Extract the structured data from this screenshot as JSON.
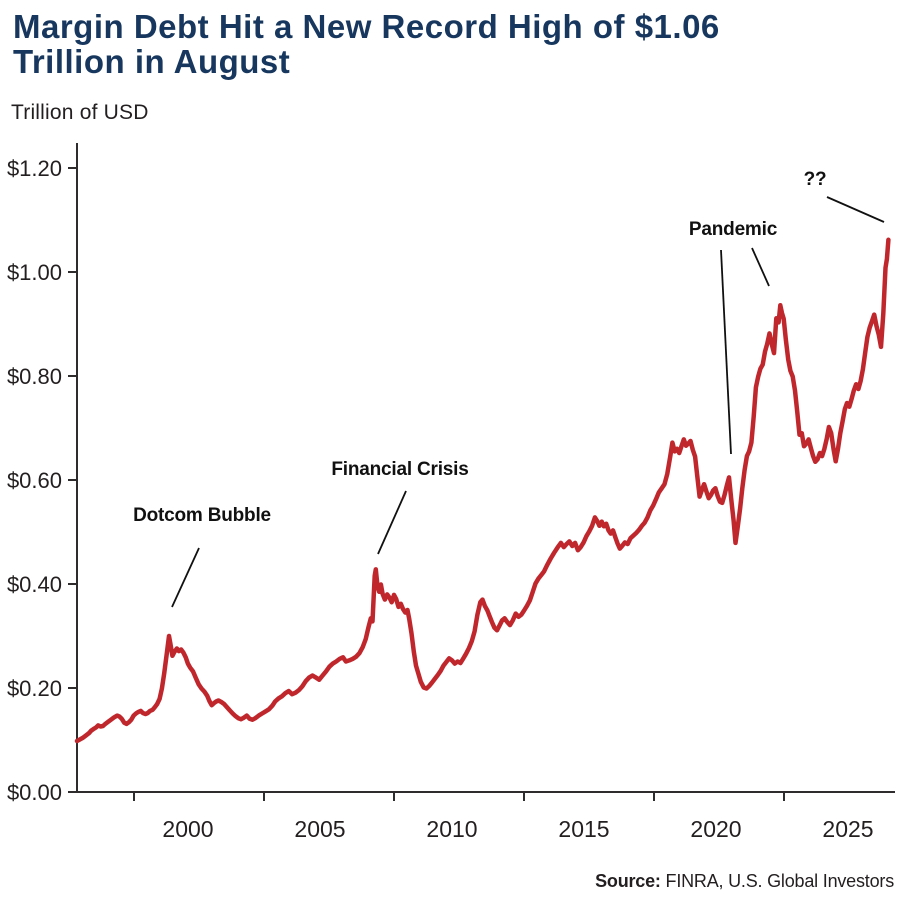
{
  "title": {
    "line1": "Margin Debt Hit a New Record High of $1.06",
    "line2": "Trillion in August"
  },
  "subtitle": "Trillion of USD",
  "source": {
    "label": "Source:",
    "text": " FINRA, U.S. Global Investors"
  },
  "colors": {
    "line": "#c0272d",
    "title": "#17375e",
    "axis": "#2e2c2d",
    "tick_text": "#231f20",
    "annotation": "#111111",
    "background": "#ffffff"
  },
  "chart_data": {
    "type": "line",
    "title": "Margin Debt Hit a New Record High of $1.06 Trillion in August",
    "ylabel": "Trillion of USD",
    "series_name": "FINRA margin debt (trillions of USD)",
    "x_range": [
      1997.0,
      2025.67
    ],
    "ylim": [
      0.0,
      1.2
    ],
    "grid": false,
    "legend": false,
    "y_ticks": {
      "values": [
        1.2,
        1.0,
        0.8,
        0.6,
        0.4,
        0.2,
        0.0
      ],
      "labels": [
        "$1.20",
        "$1.00",
        "$0.80",
        "$0.60",
        "$0.40",
        "$0.20",
        "$0.00"
      ]
    },
    "x_ticks": {
      "values": [
        2000,
        2005,
        2010,
        2015,
        2020,
        2025
      ],
      "labels": [
        "2000",
        "2005",
        "2010",
        "2015",
        "2020",
        "2025"
      ]
    },
    "annotations": [
      {
        "id": "dotcom-bubble",
        "label": "Dotcom Bubble",
        "target_year": 2000.25,
        "target_value": 0.3
      },
      {
        "id": "financial-crisis",
        "label": "Financial Crisis",
        "target_year": 2007.55,
        "target_value": 0.428
      },
      {
        "id": "pandemic",
        "label": "Pandemic",
        "target_year": 2020.27,
        "target_value": 0.479
      },
      {
        "id": "record-high",
        "label": "??",
        "target_year": 2025.67,
        "target_value": 1.06
      }
    ],
    "points": [
      [
        1997.0,
        0.098
      ],
      [
        1997.1,
        0.101
      ],
      [
        1997.2,
        0.104
      ],
      [
        1997.3,
        0.108
      ],
      [
        1997.42,
        0.113
      ],
      [
        1997.5,
        0.118
      ],
      [
        1997.58,
        0.121
      ],
      [
        1997.67,
        0.124
      ],
      [
        1997.75,
        0.128
      ],
      [
        1997.83,
        0.126
      ],
      [
        1997.92,
        0.127
      ],
      [
        1998.0,
        0.131
      ],
      [
        1998.1,
        0.135
      ],
      [
        1998.2,
        0.139
      ],
      [
        1998.3,
        0.143
      ],
      [
        1998.42,
        0.147
      ],
      [
        1998.5,
        0.145
      ],
      [
        1998.58,
        0.141
      ],
      [
        1998.67,
        0.133
      ],
      [
        1998.75,
        0.131
      ],
      [
        1998.83,
        0.134
      ],
      [
        1998.92,
        0.139
      ],
      [
        1999.0,
        0.147
      ],
      [
        1999.08,
        0.151
      ],
      [
        1999.17,
        0.154
      ],
      [
        1999.25,
        0.156
      ],
      [
        1999.33,
        0.152
      ],
      [
        1999.42,
        0.15
      ],
      [
        1999.5,
        0.152
      ],
      [
        1999.58,
        0.156
      ],
      [
        1999.67,
        0.158
      ],
      [
        1999.75,
        0.163
      ],
      [
        1999.83,
        0.169
      ],
      [
        1999.92,
        0.179
      ],
      [
        2000.0,
        0.199
      ],
      [
        2000.08,
        0.228
      ],
      [
        2000.17,
        0.265
      ],
      [
        2000.25,
        0.3
      ],
      [
        2000.3,
        0.285
      ],
      [
        2000.37,
        0.262
      ],
      [
        2000.45,
        0.27
      ],
      [
        2000.53,
        0.276
      ],
      [
        2000.6,
        0.271
      ],
      [
        2000.68,
        0.274
      ],
      [
        2000.76,
        0.268
      ],
      [
        2000.84,
        0.259
      ],
      [
        2000.92,
        0.247
      ],
      [
        2001.0,
        0.239
      ],
      [
        2001.1,
        0.232
      ],
      [
        2001.2,
        0.219
      ],
      [
        2001.3,
        0.207
      ],
      [
        2001.4,
        0.199
      ],
      [
        2001.5,
        0.193
      ],
      [
        2001.6,
        0.185
      ],
      [
        2001.68,
        0.175
      ],
      [
        2001.76,
        0.167
      ],
      [
        2001.84,
        0.171
      ],
      [
        2001.92,
        0.174
      ],
      [
        2002.0,
        0.176
      ],
      [
        2002.1,
        0.173
      ],
      [
        2002.2,
        0.169
      ],
      [
        2002.3,
        0.163
      ],
      [
        2002.4,
        0.157
      ],
      [
        2002.5,
        0.151
      ],
      [
        2002.6,
        0.146
      ],
      [
        2002.7,
        0.142
      ],
      [
        2002.8,
        0.14
      ],
      [
        2002.9,
        0.143
      ],
      [
        2003.0,
        0.147
      ],
      [
        2003.1,
        0.141
      ],
      [
        2003.2,
        0.139
      ],
      [
        2003.3,
        0.142
      ],
      [
        2003.42,
        0.147
      ],
      [
        2003.54,
        0.151
      ],
      [
        2003.66,
        0.155
      ],
      [
        2003.78,
        0.159
      ],
      [
        2003.9,
        0.166
      ],
      [
        2004.0,
        0.174
      ],
      [
        2004.12,
        0.18
      ],
      [
        2004.24,
        0.184
      ],
      [
        2004.36,
        0.19
      ],
      [
        2004.48,
        0.194
      ],
      [
        2004.6,
        0.188
      ],
      [
        2004.72,
        0.191
      ],
      [
        2004.84,
        0.196
      ],
      [
        2004.96,
        0.203
      ],
      [
        2005.08,
        0.213
      ],
      [
        2005.2,
        0.22
      ],
      [
        2005.32,
        0.224
      ],
      [
        2005.44,
        0.22
      ],
      [
        2005.56,
        0.216
      ],
      [
        2005.68,
        0.224
      ],
      [
        2005.8,
        0.232
      ],
      [
        2005.92,
        0.241
      ],
      [
        2006.04,
        0.247
      ],
      [
        2006.16,
        0.251
      ],
      [
        2006.28,
        0.256
      ],
      [
        2006.4,
        0.259
      ],
      [
        2006.5,
        0.251
      ],
      [
        2006.62,
        0.253
      ],
      [
        2006.74,
        0.256
      ],
      [
        2006.86,
        0.26
      ],
      [
        2006.98,
        0.267
      ],
      [
        2007.1,
        0.279
      ],
      [
        2007.2,
        0.294
      ],
      [
        2007.3,
        0.317
      ],
      [
        2007.38,
        0.334
      ],
      [
        2007.44,
        0.328
      ],
      [
        2007.52,
        0.416
      ],
      [
        2007.56,
        0.428
      ],
      [
        2007.62,
        0.396
      ],
      [
        2007.68,
        0.385
      ],
      [
        2007.74,
        0.399
      ],
      [
        2007.8,
        0.381
      ],
      [
        2007.88,
        0.37
      ],
      [
        2007.96,
        0.38
      ],
      [
        2008.04,
        0.374
      ],
      [
        2008.12,
        0.365
      ],
      [
        2008.2,
        0.379
      ],
      [
        2008.28,
        0.371
      ],
      [
        2008.36,
        0.356
      ],
      [
        2008.44,
        0.362
      ],
      [
        2008.52,
        0.352
      ],
      [
        2008.6,
        0.345
      ],
      [
        2008.68,
        0.35
      ],
      [
        2008.74,
        0.333
      ],
      [
        2008.82,
        0.305
      ],
      [
        2008.9,
        0.27
      ],
      [
        2008.98,
        0.243
      ],
      [
        2009.06,
        0.228
      ],
      [
        2009.15,
        0.212
      ],
      [
        2009.25,
        0.201
      ],
      [
        2009.35,
        0.199
      ],
      [
        2009.45,
        0.204
      ],
      [
        2009.55,
        0.211
      ],
      [
        2009.65,
        0.218
      ],
      [
        2009.75,
        0.225
      ],
      [
        2009.85,
        0.233
      ],
      [
        2009.95,
        0.243
      ],
      [
        2010.05,
        0.25
      ],
      [
        2010.15,
        0.257
      ],
      [
        2010.25,
        0.253
      ],
      [
        2010.35,
        0.247
      ],
      [
        2010.45,
        0.251
      ],
      [
        2010.55,
        0.248
      ],
      [
        2010.65,
        0.257
      ],
      [
        2010.75,
        0.266
      ],
      [
        2010.85,
        0.277
      ],
      [
        2010.95,
        0.29
      ],
      [
        2011.05,
        0.309
      ],
      [
        2011.15,
        0.341
      ],
      [
        2011.25,
        0.365
      ],
      [
        2011.33,
        0.37
      ],
      [
        2011.41,
        0.358
      ],
      [
        2011.5,
        0.349
      ],
      [
        2011.58,
        0.338
      ],
      [
        2011.66,
        0.327
      ],
      [
        2011.75,
        0.316
      ],
      [
        2011.84,
        0.311
      ],
      [
        2011.93,
        0.32
      ],
      [
        2012.02,
        0.33
      ],
      [
        2012.11,
        0.334
      ],
      [
        2012.2,
        0.327
      ],
      [
        2012.3,
        0.321
      ],
      [
        2012.4,
        0.33
      ],
      [
        2012.5,
        0.343
      ],
      [
        2012.6,
        0.337
      ],
      [
        2012.7,
        0.341
      ],
      [
        2012.8,
        0.349
      ],
      [
        2012.9,
        0.358
      ],
      [
        2013.0,
        0.368
      ],
      [
        2013.1,
        0.384
      ],
      [
        2013.2,
        0.401
      ],
      [
        2013.3,
        0.41
      ],
      [
        2013.4,
        0.417
      ],
      [
        2013.5,
        0.424
      ],
      [
        2013.62,
        0.437
      ],
      [
        2013.74,
        0.449
      ],
      [
        2013.86,
        0.46
      ],
      [
        2013.98,
        0.47
      ],
      [
        2014.1,
        0.479
      ],
      [
        2014.2,
        0.471
      ],
      [
        2014.3,
        0.477
      ],
      [
        2014.4,
        0.482
      ],
      [
        2014.5,
        0.473
      ],
      [
        2014.6,
        0.479
      ],
      [
        2014.7,
        0.465
      ],
      [
        2014.8,
        0.471
      ],
      [
        2014.9,
        0.48
      ],
      [
        2015.0,
        0.492
      ],
      [
        2015.1,
        0.501
      ],
      [
        2015.2,
        0.512
      ],
      [
        2015.3,
        0.528
      ],
      [
        2015.38,
        0.521
      ],
      [
        2015.46,
        0.512
      ],
      [
        2015.54,
        0.52
      ],
      [
        2015.62,
        0.511
      ],
      [
        2015.7,
        0.516
      ],
      [
        2015.78,
        0.503
      ],
      [
        2015.86,
        0.497
      ],
      [
        2015.94,
        0.503
      ],
      [
        2016.02,
        0.49
      ],
      [
        2016.1,
        0.478
      ],
      [
        2016.18,
        0.468
      ],
      [
        2016.26,
        0.473
      ],
      [
        2016.36,
        0.48
      ],
      [
        2016.46,
        0.477
      ],
      [
        2016.56,
        0.488
      ],
      [
        2016.66,
        0.493
      ],
      [
        2016.76,
        0.498
      ],
      [
        2016.86,
        0.504
      ],
      [
        2016.96,
        0.512
      ],
      [
        2017.06,
        0.518
      ],
      [
        2017.16,
        0.528
      ],
      [
        2017.26,
        0.542
      ],
      [
        2017.36,
        0.551
      ],
      [
        2017.46,
        0.563
      ],
      [
        2017.56,
        0.576
      ],
      [
        2017.66,
        0.584
      ],
      [
        2017.76,
        0.592
      ],
      [
        2017.86,
        0.612
      ],
      [
        2017.96,
        0.645
      ],
      [
        2018.04,
        0.672
      ],
      [
        2018.12,
        0.655
      ],
      [
        2018.2,
        0.66
      ],
      [
        2018.28,
        0.652
      ],
      [
        2018.36,
        0.665
      ],
      [
        2018.44,
        0.678
      ],
      [
        2018.52,
        0.666
      ],
      [
        2018.6,
        0.67
      ],
      [
        2018.68,
        0.675
      ],
      [
        2018.76,
        0.658
      ],
      [
        2018.84,
        0.645
      ],
      [
        2018.92,
        0.607
      ],
      [
        2019.0,
        0.568
      ],
      [
        2019.08,
        0.581
      ],
      [
        2019.16,
        0.592
      ],
      [
        2019.24,
        0.578
      ],
      [
        2019.32,
        0.565
      ],
      [
        2019.4,
        0.571
      ],
      [
        2019.48,
        0.58
      ],
      [
        2019.56,
        0.584
      ],
      [
        2019.64,
        0.569
      ],
      [
        2019.72,
        0.558
      ],
      [
        2019.8,
        0.556
      ],
      [
        2019.88,
        0.571
      ],
      [
        2019.96,
        0.589
      ],
      [
        2020.04,
        0.605
      ],
      [
        2020.12,
        0.562
      ],
      [
        2020.2,
        0.522
      ],
      [
        2020.27,
        0.479
      ],
      [
        2020.35,
        0.511
      ],
      [
        2020.43,
        0.545
      ],
      [
        2020.51,
        0.584
      ],
      [
        2020.59,
        0.619
      ],
      [
        2020.67,
        0.646
      ],
      [
        2020.75,
        0.655
      ],
      [
        2020.83,
        0.672
      ],
      [
        2020.91,
        0.722
      ],
      [
        2020.99,
        0.778
      ],
      [
        2021.07,
        0.799
      ],
      [
        2021.15,
        0.814
      ],
      [
        2021.23,
        0.822
      ],
      [
        2021.31,
        0.847
      ],
      [
        2021.39,
        0.862
      ],
      [
        2021.47,
        0.882
      ],
      [
        2021.55,
        0.861
      ],
      [
        2021.63,
        0.844
      ],
      [
        2021.71,
        0.911
      ],
      [
        2021.79,
        0.903
      ],
      [
        2021.85,
        0.936
      ],
      [
        2021.91,
        0.921
      ],
      [
        2021.97,
        0.91
      ],
      [
        2022.05,
        0.869
      ],
      [
        2022.13,
        0.832
      ],
      [
        2022.21,
        0.81
      ],
      [
        2022.29,
        0.799
      ],
      [
        2022.37,
        0.772
      ],
      [
        2022.45,
        0.732
      ],
      [
        2022.53,
        0.687
      ],
      [
        2022.61,
        0.69
      ],
      [
        2022.69,
        0.665
      ],
      [
        2022.77,
        0.67
      ],
      [
        2022.85,
        0.678
      ],
      [
        2022.93,
        0.662
      ],
      [
        2023.01,
        0.646
      ],
      [
        2023.09,
        0.635
      ],
      [
        2023.17,
        0.64
      ],
      [
        2023.25,
        0.652
      ],
      [
        2023.33,
        0.646
      ],
      [
        2023.41,
        0.66
      ],
      [
        2023.49,
        0.679
      ],
      [
        2023.57,
        0.702
      ],
      [
        2023.65,
        0.69
      ],
      [
        2023.73,
        0.66
      ],
      [
        2023.81,
        0.636
      ],
      [
        2023.89,
        0.66
      ],
      [
        2023.97,
        0.69
      ],
      [
        2024.05,
        0.712
      ],
      [
        2024.13,
        0.736
      ],
      [
        2024.21,
        0.748
      ],
      [
        2024.29,
        0.741
      ],
      [
        2024.37,
        0.756
      ],
      [
        2024.45,
        0.772
      ],
      [
        2024.53,
        0.784
      ],
      [
        2024.61,
        0.775
      ],
      [
        2024.69,
        0.79
      ],
      [
        2024.77,
        0.813
      ],
      [
        2024.85,
        0.845
      ],
      [
        2024.93,
        0.875
      ],
      [
        2025.01,
        0.893
      ],
      [
        2025.09,
        0.905
      ],
      [
        2025.17,
        0.918
      ],
      [
        2025.25,
        0.896
      ],
      [
        2025.33,
        0.88
      ],
      [
        2025.41,
        0.856
      ],
      [
        2025.49,
        0.92
      ],
      [
        2025.57,
        1.008
      ],
      [
        2025.62,
        1.025
      ],
      [
        2025.67,
        1.062
      ]
    ]
  }
}
